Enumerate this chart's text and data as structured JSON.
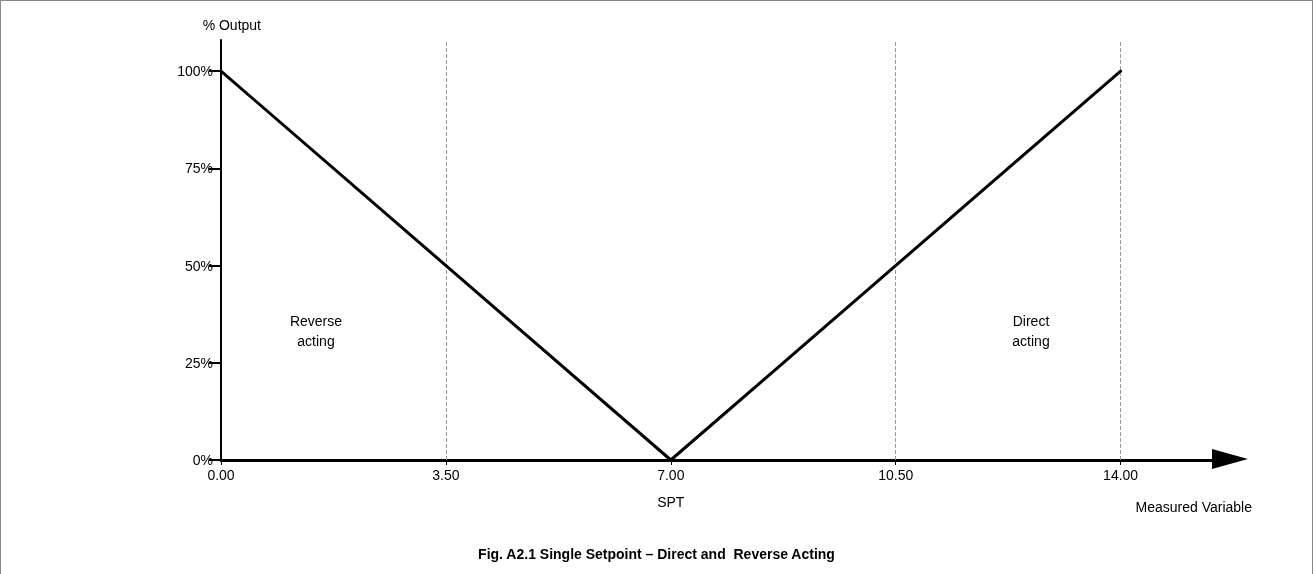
{
  "chart_data": {
    "type": "line",
    "title": "Fig. A2.1 Single Setpoint – Direct and  Reverse Acting",
    "xlabel": "Measured Variable",
    "ylabel": "% Output",
    "x": [
      0,
      7,
      14
    ],
    "series": [
      {
        "color": "#000000",
        "values": [
          100,
          0,
          100
        ]
      }
    ],
    "xlim": [
      0,
      15.5
    ],
    "xticks": [
      {
        "value": 0,
        "label": "0.00"
      },
      {
        "value": 3.5,
        "label": "3.50"
      },
      {
        "value": 7,
        "label": "7.00"
      },
      {
        "value": 10.5,
        "label": "10.50"
      },
      {
        "value": 14,
        "label": "14.00"
      }
    ],
    "ylim": [
      0,
      108
    ],
    "yticks": [
      {
        "value": 0,
        "label": "0%"
      },
      {
        "value": 25,
        "label": "25%"
      },
      {
        "value": 50,
        "label": "50%"
      },
      {
        "value": 75,
        "label": "75%"
      },
      {
        "value": 100,
        "label": "100%"
      }
    ],
    "ref_lines": [
      {
        "axis": "x",
        "value": 3.5,
        "color": "#999999",
        "line_style": "dashed"
      },
      {
        "axis": "x",
        "value": 10.5,
        "color": "#999999",
        "line_style": "dashed"
      },
      {
        "axis": "x",
        "value": 14,
        "color": "#999999",
        "line_style": "dashed"
      }
    ],
    "annotations": [
      "Reverse acting",
      "Direct acting",
      {
        "text": "SPT",
        "x": 7,
        "y": 0
      }
    ],
    "grid": false,
    "marker": "none",
    "line_style": "solid"
  }
}
